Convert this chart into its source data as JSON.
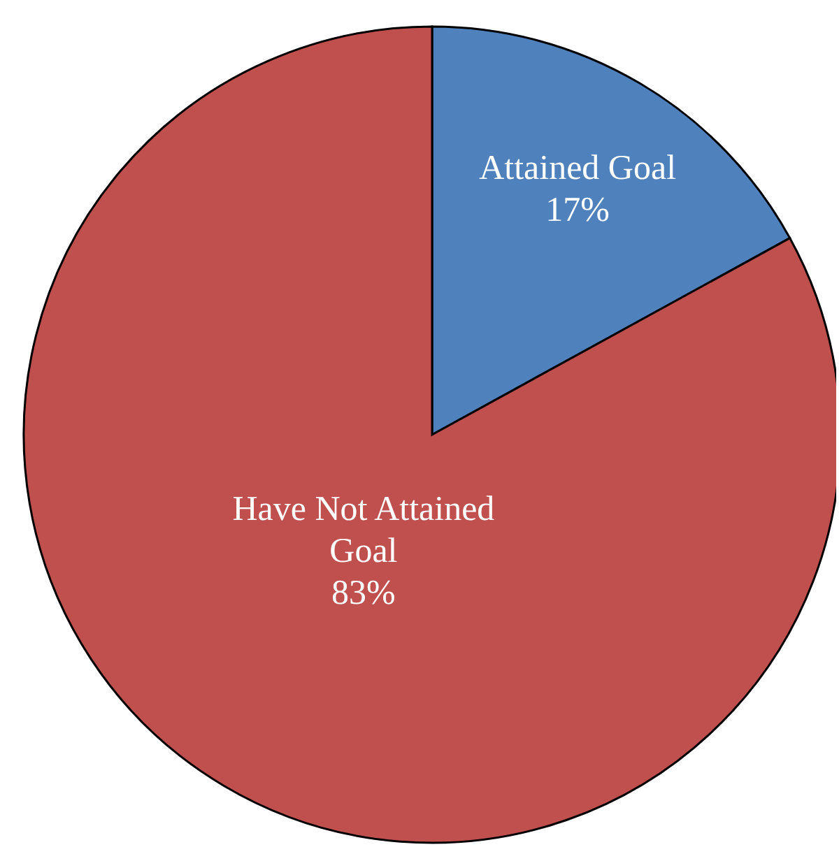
{
  "chart_data": {
    "type": "pie",
    "categories": [
      "Attained Goal",
      "Have Not Attained Goal"
    ],
    "values": [
      17,
      83
    ],
    "value_labels": [
      "17%",
      "83%"
    ],
    "colors": [
      "#4f81bd",
      "#c0504d"
    ],
    "legend": false
  }
}
